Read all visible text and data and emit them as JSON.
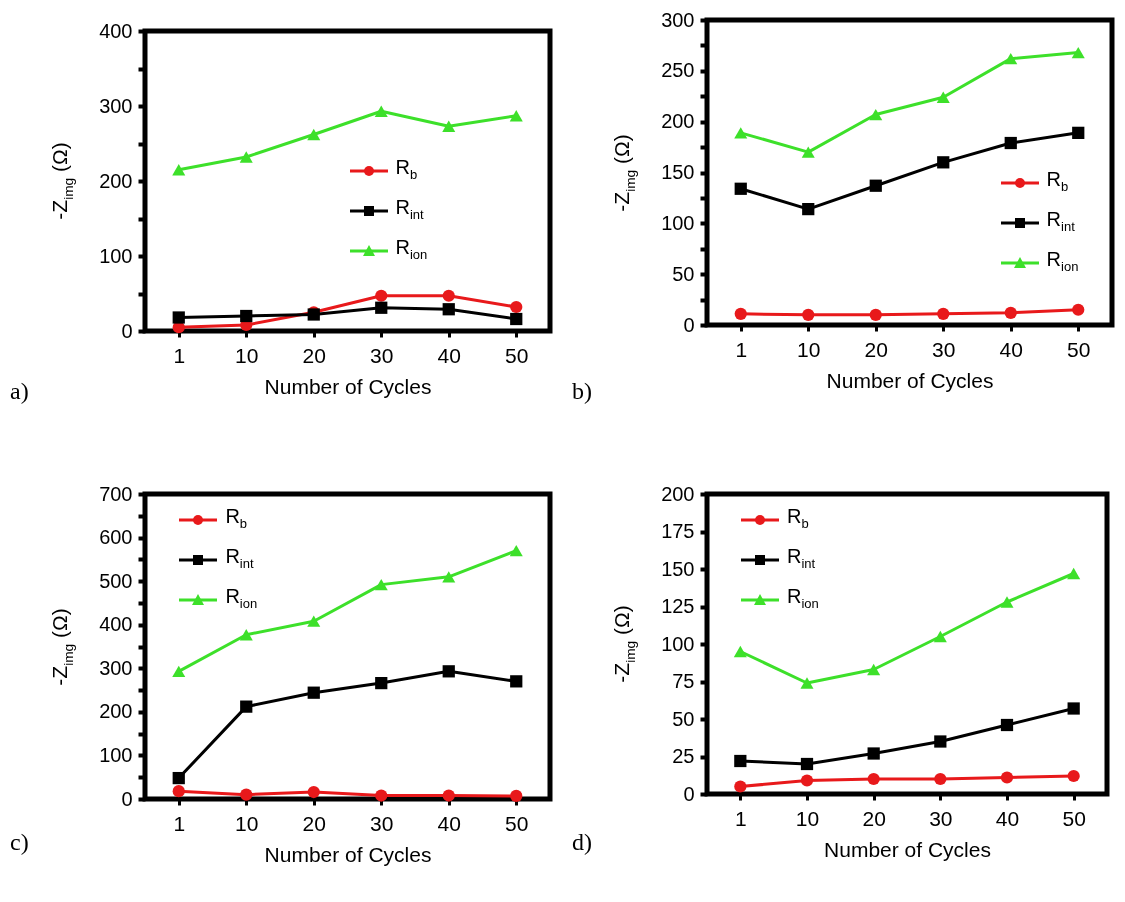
{
  "chart_data": [
    {
      "type": "line",
      "xlabel": "Number of Cycles",
      "ylabel": "-Z$_{img}$ (Ω)",
      "categories": [
        "1",
        "10",
        "20",
        "30",
        "40",
        "50"
      ],
      "ylim": [
        0,
        400
      ],
      "yticks": [
        0,
        {
          "value": 50,
          "label": null
        },
        100,
        {
          "value": 150,
          "label": null
        },
        200,
        {
          "value": 250,
          "label": null
        },
        300,
        {
          "value": 350,
          "label": null
        },
        400
      ],
      "legend": "right",
      "annotations": [
        "a)"
      ],
      "series": [
        {
          "name": "R$_{b}$",
          "color": "#e8191b",
          "marker": "circle",
          "values": [
            5,
            8,
            25,
            47,
            47,
            32
          ]
        },
        {
          "name": "R$_{int}$",
          "color": "#000000",
          "marker": "square",
          "values": [
            18,
            20,
            22,
            31,
            29,
            16
          ]
        },
        {
          "name": "R$_{ion}$",
          "color": "#3de02a",
          "marker": "triangle",
          "values": [
            215,
            232,
            262,
            293,
            273,
            287
          ]
        }
      ]
    },
    {
      "type": "line",
      "xlabel": "Number of Cycles",
      "ylabel": "-Z$_{img}$ (Ω)",
      "categories": [
        "1",
        "10",
        "20",
        "30",
        "40",
        "50"
      ],
      "ylim": [
        0,
        300
      ],
      "yticks": [
        0,
        {
          "value": 25,
          "label": null
        },
        50,
        {
          "value": 75,
          "label": null
        },
        100,
        {
          "value": 125,
          "label": null
        },
        150,
        {
          "value": 175,
          "label": null
        },
        200,
        {
          "value": 225,
          "label": null
        },
        250,
        {
          "value": 275,
          "label": null
        },
        300
      ],
      "legend": "bottom right",
      "annotations": [
        "b)"
      ],
      "series": [
        {
          "name": "R$_{b}$",
          "color": "#e8191b",
          "marker": "circle",
          "values": [
            11,
            10,
            10,
            11,
            12,
            15
          ]
        },
        {
          "name": "R$_{int}$",
          "color": "#000000",
          "marker": "square",
          "values": [
            134,
            114,
            137,
            160,
            179,
            189
          ]
        },
        {
          "name": "R$_{ion}$",
          "color": "#3de02a",
          "marker": "triangle",
          "values": [
            189,
            170,
            207,
            224,
            262,
            268
          ]
        }
      ]
    },
    {
      "type": "line",
      "xlabel": "Number of Cycles",
      "ylabel": "-Z$_{img}$ (Ω)",
      "categories": [
        "1",
        "10",
        "20",
        "30",
        "40",
        "50"
      ],
      "ylim": [
        0,
        700
      ],
      "yticks": [
        0,
        {
          "value": 50,
          "label": null
        },
        100,
        {
          "value": 150,
          "label": null
        },
        200,
        {
          "value": 250,
          "label": null
        },
        300,
        {
          "value": 350,
          "label": null
        },
        400,
        {
          "value": 450,
          "label": null
        },
        500,
        {
          "value": 550,
          "label": null
        },
        600,
        {
          "value": 650,
          "label": null
        },
        700
      ],
      "legend": "top left",
      "annotations": [
        "c)"
      ],
      "series": [
        {
          "name": "R$_{b}$",
          "color": "#e8191b",
          "marker": "circle",
          "values": [
            18,
            10,
            16,
            8,
            8,
            7
          ]
        },
        {
          "name": "R$_{int}$",
          "color": "#000000",
          "marker": "square",
          "values": [
            48,
            212,
            244,
            266,
            293,
            270
          ]
        },
        {
          "name": "R$_{ion}$",
          "color": "#3de02a",
          "marker": "triangle",
          "values": [
            293,
            377,
            408,
            492,
            510,
            570
          ]
        }
      ]
    },
    {
      "type": "line",
      "xlabel": "Number of Cycles",
      "ylabel": "-Z$_{img}$ (Ω)",
      "categories": [
        "1",
        "10",
        "20",
        "30",
        "40",
        "50"
      ],
      "ylim": [
        0,
        200
      ],
      "yticks": [
        0,
        25,
        50,
        75,
        100,
        125,
        150,
        175,
        200
      ],
      "legend": "top left",
      "annotations": [
        "d)"
      ],
      "series": [
        {
          "name": "R$_{b}$",
          "color": "#e8191b",
          "marker": "circle",
          "values": [
            5,
            9,
            10,
            10,
            11,
            12
          ]
        },
        {
          "name": "R$_{int}$",
          "color": "#000000",
          "marker": "square",
          "values": [
            22,
            20,
            27,
            35,
            46,
            57
          ]
        },
        {
          "name": "R$_{ion}$",
          "color": "#3de02a",
          "marker": "triangle",
          "values": [
            95,
            74,
            83,
            105,
            128,
            147
          ]
        }
      ]
    }
  ]
}
